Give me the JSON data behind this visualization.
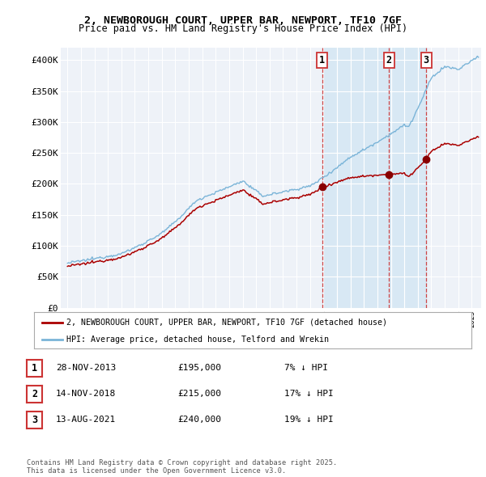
{
  "title_line1": "2, NEWBOROUGH COURT, UPPER BAR, NEWPORT, TF10 7GF",
  "title_line2": "Price paid vs. HM Land Registry's House Price Index (HPI)",
  "ylim": [
    0,
    420000
  ],
  "yticks": [
    0,
    50000,
    100000,
    150000,
    200000,
    250000,
    300000,
    350000,
    400000
  ],
  "ytick_labels": [
    "£0",
    "£50K",
    "£100K",
    "£150K",
    "£200K",
    "£250K",
    "£300K",
    "£350K",
    "£400K"
  ],
  "hpi_color": "#7ab4d8",
  "price_color": "#aa0000",
  "sale_dates_float": [
    2013.9,
    2018.87,
    2021.62
  ],
  "sale_prices": [
    195000,
    215000,
    240000
  ],
  "sale_labels": [
    "1",
    "2",
    "3"
  ],
  "legend_line1": "2, NEWBOROUGH COURT, UPPER BAR, NEWPORT, TF10 7GF (detached house)",
  "legend_line2": "HPI: Average price, detached house, Telford and Wrekin",
  "table_entries": [
    {
      "label": "1",
      "date": "28-NOV-2013",
      "price": "£195,000",
      "pct": "7% ↓ HPI"
    },
    {
      "label": "2",
      "date": "14-NOV-2018",
      "price": "£215,000",
      "pct": "17% ↓ HPI"
    },
    {
      "label": "3",
      "date": "13-AUG-2021",
      "price": "£240,000",
      "pct": "19% ↓ HPI"
    }
  ],
  "footer": "Contains HM Land Registry data © Crown copyright and database right 2025.\nThis data is licensed under the Open Government Licence v3.0.",
  "bg_color": "#ffffff",
  "plot_bg_color": "#eef2f8",
  "grid_color": "#ffffff",
  "shade_color": "#d8e8f4"
}
